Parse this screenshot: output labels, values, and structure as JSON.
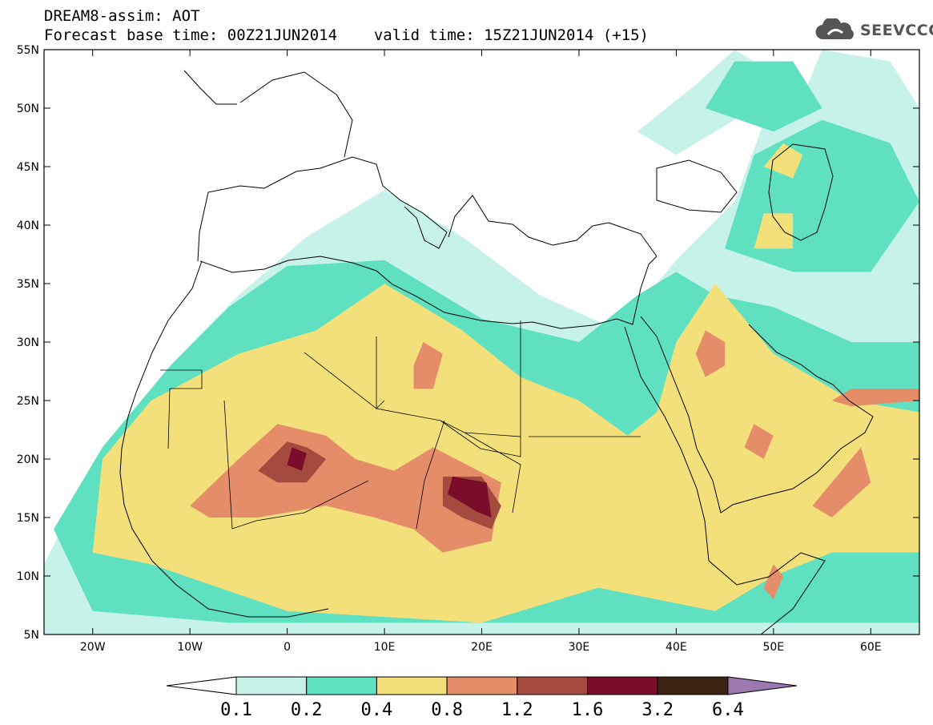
{
  "title": {
    "line1": "DREAM8-assim: AOT",
    "base": "Forecast base time: 00Z21JUN2014",
    "valid": "valid time: 15Z21JUN2014 (+15)"
  },
  "logo": {
    "text": "SEEVCCC",
    "icon": "cloud-icon"
  },
  "map": {
    "lon_range": [
      -25,
      65
    ],
    "lat_range": [
      5,
      55
    ],
    "lon_ticks": [
      {
        "lon": -20,
        "label": "20W"
      },
      {
        "lon": -10,
        "label": "10W"
      },
      {
        "lon": 0,
        "label": "0"
      },
      {
        "lon": 10,
        "label": "10E"
      },
      {
        "lon": 20,
        "label": "20E"
      },
      {
        "lon": 30,
        "label": "30E"
      },
      {
        "lon": 40,
        "label": "40E"
      },
      {
        "lon": 50,
        "label": "50E"
      },
      {
        "lon": 60,
        "label": "60E"
      }
    ],
    "lat_ticks": [
      {
        "lat": 5,
        "label": "5N"
      },
      {
        "lat": 10,
        "label": "10N"
      },
      {
        "lat": 15,
        "label": "15N"
      },
      {
        "lat": 20,
        "label": "20N"
      },
      {
        "lat": 25,
        "label": "25N"
      },
      {
        "lat": 30,
        "label": "30N"
      },
      {
        "lat": 35,
        "label": "35N"
      },
      {
        "lat": 40,
        "label": "40N"
      },
      {
        "lat": 45,
        "label": "45N"
      },
      {
        "lat": 50,
        "label": "50N"
      },
      {
        "lat": 55,
        "label": "55N"
      }
    ]
  },
  "colorbar": {
    "bins": [
      {
        "color": "#c6f2ea"
      },
      {
        "color": "#5fe0c0"
      },
      {
        "color": "#f4e07a"
      },
      {
        "color": "#e58c69"
      },
      {
        "color": "#a54a3e"
      },
      {
        "color": "#7a0d2a"
      },
      {
        "color": "#3c2414"
      }
    ],
    "under_color": "#ffffff",
    "over_color": "#9b78ad",
    "labels": [
      "0.1",
      "0.2",
      "0.4",
      "0.8",
      "1.2",
      "1.6",
      "3.2",
      "6.4"
    ]
  },
  "contours": [
    {
      "level": 0.1,
      "color": "#c6f2ea",
      "areas": [
        {
          "region": "northwest-africa",
          "points": [
            [
              -25,
              11
            ],
            [
              -19,
              21
            ],
            [
              -12,
              28
            ],
            [
              -5,
              34
            ],
            [
              2,
              39
            ],
            [
              10,
              43
            ],
            [
              18,
              39
            ],
            [
              26,
              34
            ],
            [
              34,
              31
            ],
            [
              40,
              37
            ],
            [
              46,
              42
            ],
            [
              50,
              51
            ],
            [
              58,
              52
            ],
            [
              65,
              48
            ],
            [
              65,
              5
            ],
            [
              -25,
              5
            ]
          ]
        },
        {
          "region": "black-sea-caspian",
          "points": [
            [
              44,
              35
            ],
            [
              48,
              43
            ],
            [
              52,
              49
            ],
            [
              55,
              55
            ],
            [
              62,
              54
            ],
            [
              65,
              50
            ],
            [
              65,
              34
            ],
            [
              56,
              34
            ]
          ]
        },
        {
          "region": "ukraine-coast",
          "points": [
            [
              36,
              48
            ],
            [
              42,
              52
            ],
            [
              46,
              55
            ],
            [
              50,
              53
            ],
            [
              46,
              49
            ],
            [
              40,
              46
            ]
          ]
        }
      ]
    },
    {
      "level": 0.2,
      "color": "#5fe0c0",
      "areas": [
        {
          "region": "sahara-sahel",
          "points": [
            [
              -24,
              14
            ],
            [
              -19,
              21
            ],
            [
              -12,
              28
            ],
            [
              -6,
              33
            ],
            [
              0,
              36.5
            ],
            [
              10,
              37
            ],
            [
              20,
              32
            ],
            [
              30,
              30
            ],
            [
              36,
              34
            ],
            [
              40,
              36
            ],
            [
              44,
              34
            ],
            [
              50,
              33
            ],
            [
              58,
              30
            ],
            [
              65,
              30
            ],
            [
              65,
              6
            ],
            [
              -6,
              6
            ],
            [
              -20,
              7
            ]
          ]
        },
        {
          "region": "caspian",
          "points": [
            [
              45,
              38
            ],
            [
              48,
              46
            ],
            [
              55,
              49
            ],
            [
              62,
              47
            ],
            [
              65,
              42
            ],
            [
              60,
              36
            ],
            [
              52,
              36
            ]
          ]
        },
        {
          "region": "russia-north",
          "points": [
            [
              43,
              50
            ],
            [
              46,
              54
            ],
            [
              52,
              54
            ],
            [
              55,
              50
            ],
            [
              50,
              48
            ]
          ]
        }
      ]
    },
    {
      "level": 0.4,
      "color": "#f4e07a",
      "areas": [
        {
          "region": "west-africa",
          "points": [
            [
              -20,
              12
            ],
            [
              -19,
              20
            ],
            [
              -14,
              25
            ],
            [
              -5,
              29
            ],
            [
              3,
              31
            ],
            [
              10,
              35
            ],
            [
              18,
              31
            ],
            [
              24,
              27
            ],
            [
              30,
              25
            ],
            [
              35,
              22
            ],
            [
              38,
              24
            ],
            [
              40,
              30
            ],
            [
              44,
              35
            ],
            [
              50,
              29
            ],
            [
              58,
              25
            ],
            [
              65,
              24
            ],
            [
              65,
              12
            ],
            [
              56,
              12
            ],
            [
              50,
              10
            ],
            [
              44,
              7
            ],
            [
              32,
              9
            ],
            [
              20,
              6
            ],
            [
              0,
              7
            ],
            [
              -14,
              11
            ]
          ]
        },
        {
          "region": "caspian-north",
          "points": [
            [
              49,
              45
            ],
            [
              51,
              47
            ],
            [
              53,
              46
            ],
            [
              52,
              44
            ]
          ]
        },
        {
          "region": "caspian-south",
          "points": [
            [
              48,
              38
            ],
            [
              49,
              41
            ],
            [
              52,
              41
            ],
            [
              52,
              38
            ]
          ]
        }
      ]
    },
    {
      "level": 0.8,
      "color": "#e58c69",
      "areas": [
        {
          "region": "mali-niger",
          "points": [
            [
              -10,
              16
            ],
            [
              -5,
              20
            ],
            [
              -1,
              23
            ],
            [
              4,
              22
            ],
            [
              7,
              20
            ],
            [
              11,
              19
            ],
            [
              15,
              21
            ],
            [
              22,
              18
            ],
            [
              21,
              13
            ],
            [
              16,
              12
            ],
            [
              13,
              14
            ],
            [
              9,
              15
            ],
            [
              4,
              16
            ],
            [
              -3,
              15
            ],
            [
              -8,
              15
            ]
          ]
        },
        {
          "region": "libya",
          "points": [
            [
              13,
              28
            ],
            [
              14,
              30
            ],
            [
              16,
              29
            ],
            [
              15,
              26
            ],
            [
              13,
              26
            ]
          ]
        },
        {
          "region": "iraq",
          "points": [
            [
              42,
              29
            ],
            [
              43,
              31
            ],
            [
              45,
              30
            ],
            [
              45,
              28
            ],
            [
              43,
              27
            ]
          ]
        },
        {
          "region": "arabia",
          "points": [
            [
              47,
              21
            ],
            [
              48,
              23
            ],
            [
              50,
              22
            ],
            [
              49,
              20
            ]
          ]
        },
        {
          "region": "oman",
          "points": [
            [
              54,
              16
            ],
            [
              57,
              19
            ],
            [
              59,
              21
            ],
            [
              60,
              18
            ],
            [
              56,
              15
            ]
          ]
        },
        {
          "region": "pakistan-coast",
          "points": [
            [
              56,
              25
            ],
            [
              58,
              26
            ],
            [
              65,
              26
            ],
            [
              65,
              25
            ],
            [
              58,
              24.5
            ]
          ]
        },
        {
          "region": "somalia",
          "points": [
            [
              49,
              9
            ],
            [
              50,
              11
            ],
            [
              51,
              10
            ],
            [
              50,
              8
            ]
          ]
        }
      ]
    },
    {
      "level": 1.2,
      "color": "#a54a3e",
      "areas": [
        {
          "region": "mali",
          "points": [
            [
              -3,
              19
            ],
            [
              0,
              21.5
            ],
            [
              2,
              21
            ],
            [
              4,
              20
            ],
            [
              2,
              18
            ],
            [
              -1,
              18
            ]
          ]
        },
        {
          "region": "chad",
          "points": [
            [
              16,
              16
            ],
            [
              16,
              18.5
            ],
            [
              20,
              18.5
            ],
            [
              22,
              16
            ],
            [
              21,
              14
            ],
            [
              18,
              15
            ]
          ]
        }
      ]
    },
    {
      "level": 1.6,
      "color": "#7a0d2a",
      "areas": [
        {
          "region": "mali-core",
          "points": [
            [
              0,
              19.5
            ],
            [
              0.5,
              21
            ],
            [
              2,
              20.5
            ],
            [
              1.5,
              19
            ]
          ]
        },
        {
          "region": "chad-core",
          "points": [
            [
              16.5,
              17
            ],
            [
              17,
              18.5
            ],
            [
              20.5,
              18
            ],
            [
              21,
              15
            ],
            [
              19.5,
              15.5
            ]
          ]
        }
      ]
    }
  ]
}
